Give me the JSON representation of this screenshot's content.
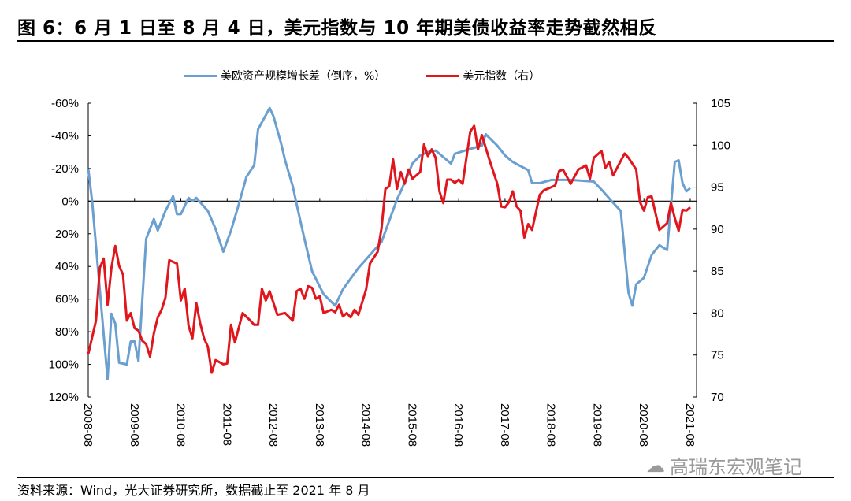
{
  "title": "图 6：6 月 1 日至 8 月 4 日，美元指数与 10 年期美债收益率走势截然相反",
  "footer": "资料来源：Wind，光大证券研究所，数据截止至 2021 年 8 月",
  "watermark": "高瑞东宏观笔记",
  "chart_data": {
    "type": "line",
    "title": "",
    "legend_position": "top",
    "grid": false,
    "x_ticks": [
      "2008-08",
      "2009-08",
      "2010-08",
      "2011-08",
      "2012-08",
      "2013-08",
      "2014-08",
      "2015-08",
      "2016-08",
      "2017-08",
      "2018-08",
      "2019-08",
      "2020-08",
      "2021-08"
    ],
    "x_range": [
      "2008-08",
      "2021-08"
    ],
    "left_axis": {
      "range": [
        -60,
        120
      ],
      "inverted": true,
      "ticks": [
        "-60%",
        "-40%",
        "-20%",
        "0%",
        "20%",
        "40%",
        "60%",
        "80%",
        "100%",
        "120%"
      ],
      "tick_values": [
        -60,
        -40,
        -20,
        0,
        20,
        40,
        60,
        80,
        100,
        120
      ]
    },
    "right_axis": {
      "range": [
        70,
        105
      ],
      "ticks": [
        "105",
        "100",
        "95",
        "90",
        "85",
        "80",
        "75",
        "70"
      ],
      "tick_values": [
        105,
        100,
        95,
        90,
        85,
        80,
        75,
        70
      ]
    },
    "series": [
      {
        "name": "美欧资产规模增长差（倒序，%）",
        "axis": "left",
        "color": "#6a9fcf",
        "points": [
          [
            "2008-08",
            -20
          ],
          [
            "2008-09",
            0
          ],
          [
            "2009-01",
            109
          ],
          [
            "2009-02",
            69
          ],
          [
            "2009-03",
            75
          ],
          [
            "2009-04",
            99
          ],
          [
            "2009-06",
            100
          ],
          [
            "2009-07",
            86
          ],
          [
            "2009-08",
            86
          ],
          [
            "2009-09",
            98
          ],
          [
            "2009-11",
            23
          ],
          [
            "2010-01",
            11
          ],
          [
            "2010-02",
            18
          ],
          [
            "2010-04",
            6
          ],
          [
            "2010-06",
            -3
          ],
          [
            "2010-07",
            8
          ],
          [
            "2010-08",
            8
          ],
          [
            "2010-10",
            -2
          ],
          [
            "2010-11",
            0
          ],
          [
            "2010-12",
            -2
          ],
          [
            "2011-03",
            6
          ],
          [
            "2011-05",
            17
          ],
          [
            "2011-07",
            31
          ],
          [
            "2011-09",
            18
          ],
          [
            "2011-11",
            2
          ],
          [
            "2012-01",
            -15
          ],
          [
            "2012-03",
            -22
          ],
          [
            "2012-04",
            -44
          ],
          [
            "2012-07",
            -57
          ],
          [
            "2012-08",
            -52
          ],
          [
            "2012-10",
            -35
          ],
          [
            "2012-11",
            -25
          ],
          [
            "2013-01",
            -9
          ],
          [
            "2013-02",
            2
          ],
          [
            "2013-04",
            23
          ],
          [
            "2013-06",
            43
          ],
          [
            "2013-09",
            57
          ],
          [
            "2013-12",
            64
          ],
          [
            "2014-02",
            54
          ],
          [
            "2014-06",
            41
          ],
          [
            "2014-09",
            33
          ],
          [
            "2014-12",
            25
          ],
          [
            "2015-02",
            12
          ],
          [
            "2015-04",
            -1
          ],
          [
            "2015-05",
            -6
          ],
          [
            "2015-07",
            -17
          ],
          [
            "2015-08",
            -23
          ],
          [
            "2015-10",
            -28
          ],
          [
            "2015-12",
            -30
          ],
          [
            "2016-02",
            -31
          ],
          [
            "2016-04",
            -27
          ],
          [
            "2016-06",
            -23
          ],
          [
            "2016-07",
            -29
          ],
          [
            "2016-11",
            -32
          ],
          [
            "2017-02",
            -34
          ],
          [
            "2017-03",
            -41
          ],
          [
            "2017-06",
            -34
          ],
          [
            "2017-08",
            -28
          ],
          [
            "2017-10",
            -24
          ],
          [
            "2018-02",
            -19
          ],
          [
            "2018-03",
            -11
          ],
          [
            "2018-05",
            -11
          ],
          [
            "2018-08",
            -13
          ],
          [
            "2019-01",
            -13
          ],
          [
            "2019-07",
            -12
          ],
          [
            "2019-09",
            -7
          ],
          [
            "2019-12",
            1
          ],
          [
            "2020-02",
            6
          ],
          [
            "2020-04",
            56
          ],
          [
            "2020-05",
            64
          ],
          [
            "2020-06",
            51
          ],
          [
            "2020-08",
            47
          ],
          [
            "2020-10",
            33
          ],
          [
            "2020-12",
            27
          ],
          [
            "2021-02",
            30
          ],
          [
            "2021-04",
            -24
          ],
          [
            "2021-05",
            -25
          ],
          [
            "2021-06",
            -11
          ],
          [
            "2021-07",
            -6
          ],
          [
            "2021-08",
            -8
          ]
        ]
      },
      {
        "name": "美元指数（右）",
        "axis": "right",
        "color": "#e0161c",
        "points": [
          [
            "2008-08",
            75.1
          ],
          [
            "2008-10",
            79.1
          ],
          [
            "2008-11",
            85.4
          ],
          [
            "2008-12",
            86.5
          ],
          [
            "2009-01",
            81
          ],
          [
            "2009-02",
            85.4
          ],
          [
            "2009-03",
            88
          ],
          [
            "2009-04",
            85.6
          ],
          [
            "2009-05",
            84.6
          ],
          [
            "2009-06",
            79.1
          ],
          [
            "2009-07",
            80
          ],
          [
            "2009-08",
            78.2
          ],
          [
            "2009-09",
            77.9
          ],
          [
            "2009-10",
            76.7
          ],
          [
            "2009-11",
            76.3
          ],
          [
            "2009-12",
            74.8
          ],
          [
            "2010-01",
            77.6
          ],
          [
            "2010-02",
            79.5
          ],
          [
            "2010-03",
            80.4
          ],
          [
            "2010-04",
            81.8
          ],
          [
            "2010-05",
            86.3
          ],
          [
            "2010-07",
            85.9
          ],
          [
            "2010-08",
            81.5
          ],
          [
            "2010-09",
            82.9
          ],
          [
            "2010-10",
            78.5
          ],
          [
            "2010-11",
            77
          ],
          [
            "2010-12",
            81.2
          ],
          [
            "2011-01",
            78.8
          ],
          [
            "2011-02",
            77
          ],
          [
            "2011-03",
            76
          ],
          [
            "2011-04",
            72.9
          ],
          [
            "2011-05",
            74.4
          ],
          [
            "2011-07",
            73.9
          ],
          [
            "2011-08",
            74
          ],
          [
            "2011-09",
            78.6
          ],
          [
            "2011-10",
            76.5
          ],
          [
            "2011-12",
            80
          ],
          [
            "2012-02",
            79.1
          ],
          [
            "2012-03",
            78.6
          ],
          [
            "2012-04",
            78.6
          ],
          [
            "2012-05",
            82.9
          ],
          [
            "2012-06",
            81.5
          ],
          [
            "2012-07",
            82.6
          ],
          [
            "2012-09",
            79.8
          ],
          [
            "2012-11",
            80
          ],
          [
            "2013-01",
            79.1
          ],
          [
            "2013-02",
            82.6
          ],
          [
            "2013-03",
            82.9
          ],
          [
            "2013-04",
            81.7
          ],
          [
            "2013-05",
            83.2
          ],
          [
            "2013-06",
            83
          ],
          [
            "2013-07",
            81.7
          ],
          [
            "2013-08",
            82
          ],
          [
            "2013-09",
            80
          ],
          [
            "2013-11",
            80.4
          ],
          [
            "2013-12",
            80.1
          ],
          [
            "2014-01",
            81
          ],
          [
            "2014-02",
            79.6
          ],
          [
            "2014-03",
            80
          ],
          [
            "2014-04",
            79.5
          ],
          [
            "2014-05",
            80.4
          ],
          [
            "2014-06",
            79.8
          ],
          [
            "2014-08",
            82.8
          ],
          [
            "2014-09",
            85.9
          ],
          [
            "2014-11",
            87.3
          ],
          [
            "2014-12",
            90.1
          ],
          [
            "2015-01",
            94.8
          ],
          [
            "2015-02",
            95.1
          ],
          [
            "2015-03",
            98.3
          ],
          [
            "2015-04",
            94.8
          ],
          [
            "2015-05",
            96.8
          ],
          [
            "2015-06",
            95.4
          ],
          [
            "2015-07",
            97.1
          ],
          [
            "2015-08",
            96
          ],
          [
            "2015-10",
            96.8
          ],
          [
            "2015-11",
            100.1
          ],
          [
            "2015-12",
            98.7
          ],
          [
            "2016-01",
            99.5
          ],
          [
            "2016-02",
            98.5
          ],
          [
            "2016-03",
            94.5
          ],
          [
            "2016-04",
            93.1
          ],
          [
            "2016-05",
            95.9
          ],
          [
            "2016-06",
            95.9
          ],
          [
            "2016-07",
            95.5
          ],
          [
            "2016-08",
            95.9
          ],
          [
            "2016-09",
            95.4
          ],
          [
            "2016-11",
            101.6
          ],
          [
            "2016-12",
            102.3
          ],
          [
            "2017-01",
            99.5
          ],
          [
            "2017-02",
            101.2
          ],
          [
            "2017-04",
            98.2
          ],
          [
            "2017-06",
            95.4
          ],
          [
            "2017-07",
            92.7
          ],
          [
            "2017-08",
            92.6
          ],
          [
            "2017-09",
            93.2
          ],
          [
            "2017-10",
            94.5
          ],
          [
            "2017-11",
            92.7
          ],
          [
            "2017-12",
            92.2
          ],
          [
            "2018-01",
            89
          ],
          [
            "2018-02",
            90.6
          ],
          [
            "2018-03",
            89.9
          ],
          [
            "2018-05",
            94.1
          ],
          [
            "2018-06",
            94.6
          ],
          [
            "2018-08",
            95
          ],
          [
            "2018-09",
            95.2
          ],
          [
            "2018-10",
            96.9
          ],
          [
            "2018-11",
            97.1
          ],
          [
            "2019-01",
            95.4
          ],
          [
            "2019-03",
            97.1
          ],
          [
            "2019-05",
            97.6
          ],
          [
            "2019-06",
            96
          ],
          [
            "2019-07",
            98.5
          ],
          [
            "2019-09",
            99.3
          ],
          [
            "2019-10",
            97.3
          ],
          [
            "2019-11",
            98
          ],
          [
            "2019-12",
            96.4
          ],
          [
            "2020-03",
            99
          ],
          [
            "2020-04",
            98.5
          ],
          [
            "2020-06",
            97.1
          ],
          [
            "2020-07",
            93.2
          ],
          [
            "2020-08",
            92.2
          ],
          [
            "2020-09",
            93.8
          ],
          [
            "2020-10",
            93.9
          ],
          [
            "2020-12",
            89.9
          ],
          [
            "2021-02",
            90.7
          ],
          [
            "2021-03",
            93.1
          ],
          [
            "2021-04",
            91.3
          ],
          [
            "2021-05",
            89.8
          ],
          [
            "2021-06",
            92.3
          ],
          [
            "2021-07",
            92.2
          ],
          [
            "2021-08",
            92.6
          ]
        ]
      }
    ]
  }
}
